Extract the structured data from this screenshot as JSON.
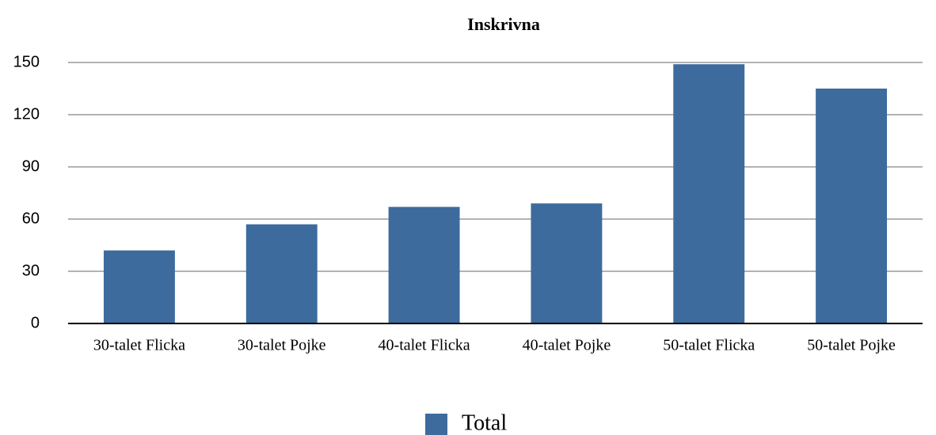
{
  "chart_data": {
    "type": "bar",
    "title": "Inskrivna",
    "categories": [
      "30-talet Flicka",
      "30-talet Pojke",
      "40-talet Flicka",
      "40-talet Pojke",
      "50-talet Flicka",
      "50-talet Pojke"
    ],
    "series": [
      {
        "name": "Total",
        "color": "#3d6b9d",
        "values": [
          42,
          57,
          67,
          69,
          149,
          135
        ]
      }
    ],
    "ylim": [
      0,
      150
    ],
    "yticks": [
      0,
      30,
      60,
      90,
      120,
      150
    ],
    "grid": true,
    "legend": "bottom"
  }
}
